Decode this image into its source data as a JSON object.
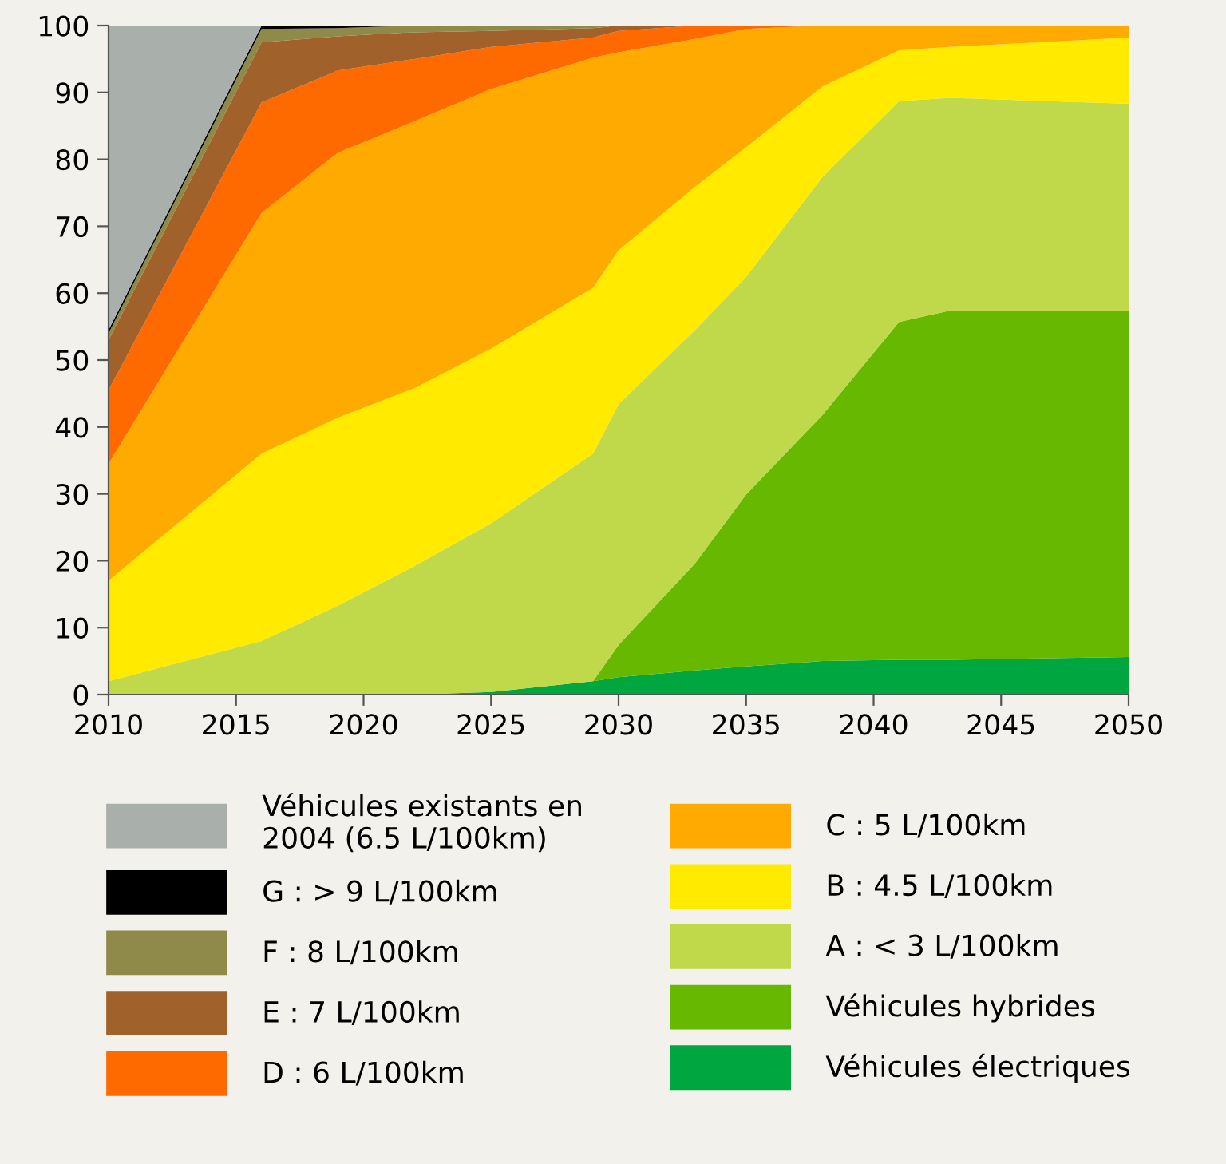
{
  "chart_data": {
    "type": "area",
    "stacked": true,
    "x": [
      2010,
      2016,
      2019,
      2022,
      2025,
      2029,
      2030,
      2033,
      2035,
      2038,
      2041,
      2043,
      2050
    ],
    "series": [
      {
        "name": "Véhicules électriques",
        "color": "#00a640",
        "values": [
          0,
          0,
          0,
          0,
          0.4,
          2,
          2.6,
          3.6,
          4.2,
          5,
          5.2,
          5.2,
          5.6
        ]
      },
      {
        "name": "Véhicules hybrides",
        "color": "#66b800",
        "values": [
          0,
          0,
          0,
          0,
          0,
          0,
          4.8,
          16,
          25.7,
          36.8,
          50.5,
          52.2,
          51.8
        ]
      },
      {
        "name": "A : < 3 L/100km",
        "color": "#c0d94a",
        "values": [
          2,
          8,
          13.3,
          19.2,
          25.2,
          34,
          36,
          34.9,
          32.5,
          35.6,
          33,
          31.8,
          30.9
        ]
      },
      {
        "name": "B : 4.5 L/100km",
        "color": "#ffea00",
        "values": [
          15,
          28,
          28.1,
          26.6,
          26.1,
          24.8,
          23,
          21.4,
          19.4,
          13.5,
          7.6,
          7.6,
          9.9
        ]
      },
      {
        "name": "C : 5 L/100km",
        "color": "#ffaa00",
        "values": [
          17.5,
          36,
          39.6,
          39.9,
          38.8,
          34.4,
          29.6,
          22.1,
          17.7,
          9.1,
          3.7,
          3.2,
          1.8
        ]
      },
      {
        "name": "D : 6 L/100km",
        "color": "#ff6a00",
        "values": [
          11,
          16.5,
          12.3,
          9.3,
          6.3,
          3,
          3.2,
          2,
          0.5,
          0,
          0,
          0,
          0
        ]
      },
      {
        "name": "E : 7 L/100km",
        "color": "#a0612a",
        "values": [
          7.5,
          9,
          5.1,
          4,
          2.4,
          1.4,
          0.8,
          0,
          0,
          0,
          0,
          0,
          0
        ]
      },
      {
        "name": "F : 8 L/100km",
        "color": "#8f8a4a",
        "values": [
          1,
          2,
          1.2,
          1,
          0.8,
          0.4,
          0,
          0,
          0,
          0,
          0,
          0,
          0
        ]
      },
      {
        "name": "G : > 9 L/100km",
        "color": "#000000",
        "values": [
          0.5,
          0.5,
          0.4,
          0,
          0,
          0,
          0,
          0,
          0,
          0,
          0,
          0,
          0
        ]
      },
      {
        "name": "Véhicules existants en\n2004 (6.5 L/100km)",
        "color": "#a9b0ac",
        "values": [
          45.5,
          0,
          0,
          0,
          0,
          0,
          0,
          0,
          0,
          0,
          0,
          0,
          0
        ]
      }
    ],
    "xlim": [
      2010,
      2050
    ],
    "xticks": [
      2010,
      2015,
      2020,
      2025,
      2030,
      2035,
      2040,
      2045,
      2050
    ],
    "ylim": [
      0,
      100
    ],
    "yticks": [
      0,
      10,
      20,
      30,
      40,
      50,
      60,
      70,
      80,
      90,
      100
    ],
    "grid": false,
    "legend": "bottom"
  }
}
